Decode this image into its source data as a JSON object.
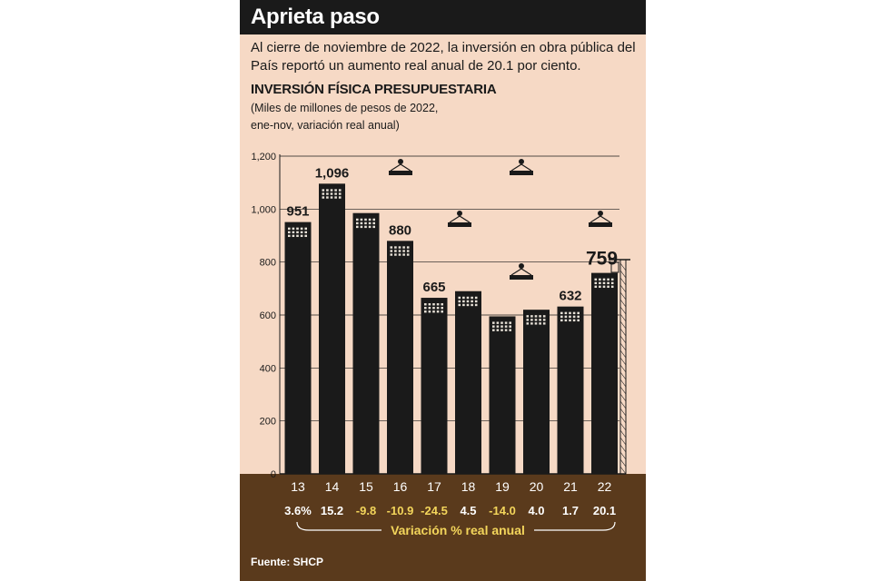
{
  "header": {
    "title": "Aprieta paso",
    "subtitle": "Al cierre de noviembre de 2022, la inversión en obra pública del País reportó un aumento real anual de 20.1 por ciento."
  },
  "chart_title": "INVERSIÓN FÍSICA PRESUPUESTARIA",
  "notes": {
    "line1": "(Miles de millones de pesos de 2022,",
    "line2": "ene-nov, variación real anual)"
  },
  "chart_data": {
    "type": "bar",
    "categories": [
      "13",
      "14",
      "15",
      "16",
      "17",
      "18",
      "19",
      "20",
      "21",
      "22"
    ],
    "values": [
      951,
      1096,
      985,
      880,
      665,
      690,
      595,
      620,
      632,
      759
    ],
    "labeled": [
      true,
      true,
      false,
      true,
      true,
      false,
      false,
      false,
      true,
      true
    ],
    "value_labels": [
      "951",
      "1,096",
      "",
      "880",
      "665",
      "",
      "",
      "",
      "632",
      "759"
    ],
    "variation": [
      "3.6%",
      "15.2",
      "-9.8",
      "-10.9",
      "-24.5",
      "4.5",
      "-14.0",
      "4.0",
      "1.7",
      "20.1"
    ],
    "variation_label": "Variación % real anual",
    "yticks": [
      0,
      200,
      400,
      600,
      800,
      1000,
      1200
    ],
    "ytick_labels": [
      "0",
      "200",
      "400",
      "600",
      "800",
      "1,000",
      "1,200"
    ],
    "ylim": [
      0,
      1200
    ],
    "grid": true
  },
  "source": "Fuente: SHCP",
  "colors": {
    "background": "#f6d9c5",
    "bar": "#1a1a1a",
    "title_bar": "#1a1a1a",
    "footer": "#5a3a1c",
    "positive_text": "#ffffff",
    "negative_text": "#f3d55b"
  }
}
